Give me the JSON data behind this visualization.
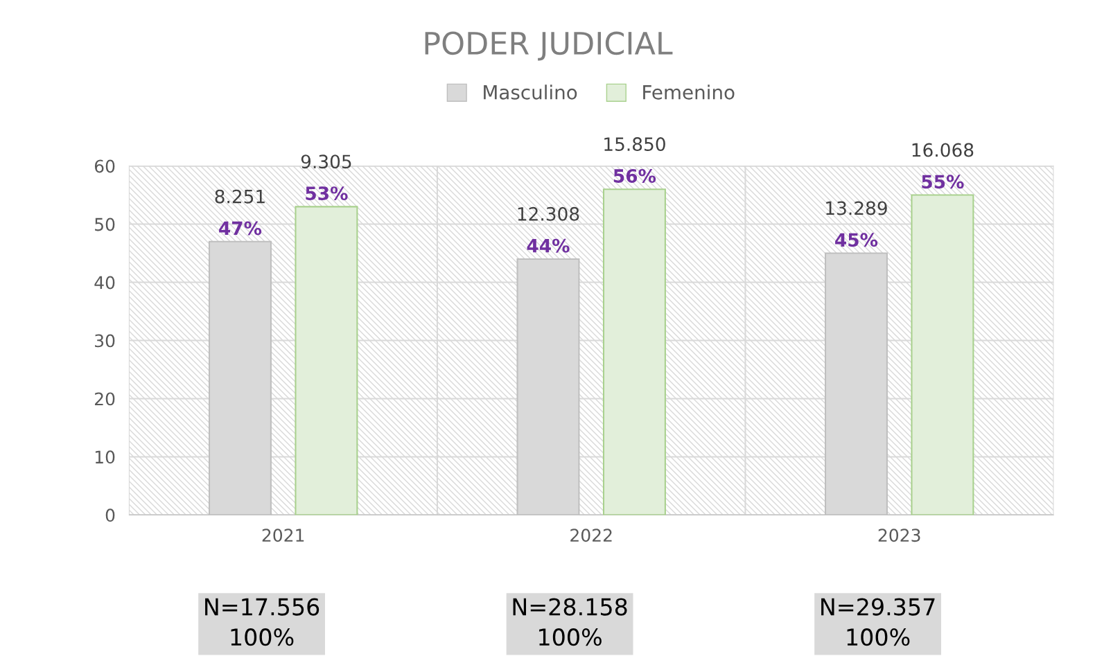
{
  "chart_data": {
    "type": "bar",
    "title": "PODER JUDICIAL",
    "categories": [
      "2021",
      "2022",
      "2023"
    ],
    "series": [
      {
        "name": "Masculino",
        "color": "#d9d9d9",
        "values": [
          47,
          44,
          45
        ],
        "value_labels": [
          "8.251\n47%",
          "12.308\n44%",
          "13.289\n45%"
        ]
      },
      {
        "name": "Femenino",
        "color": "#e2efda",
        "values": [
          53,
          56,
          55
        ],
        "value_labels": [
          "9.305\n53%",
          "15.850\n56%",
          "16.068\n55%"
        ]
      }
    ],
    "ylim": [
      0,
      60
    ],
    "yticks": [
      0,
      10,
      20,
      30,
      40,
      50,
      60
    ],
    "grid": "y",
    "legend": "top",
    "annotations": [
      "N=17.556\n100%",
      "N=28.158\n100%",
      "N=29.357\n100%"
    ]
  }
}
